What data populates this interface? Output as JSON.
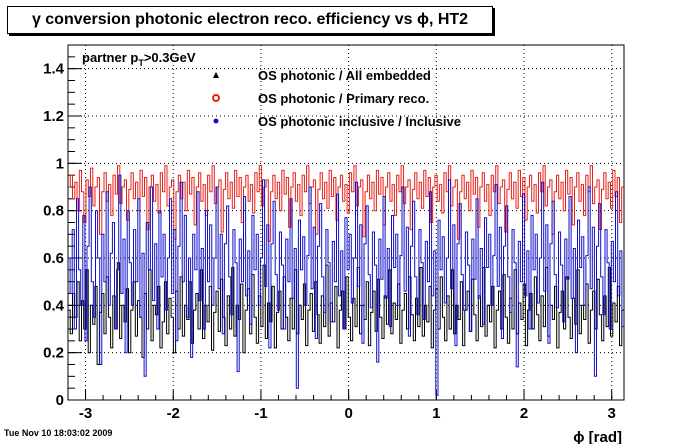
{
  "title": "γ conversion photonic electron reco. efficiency vs ϕ, HT2",
  "timestamp": "Tue Nov 10 18:03:02 2009",
  "chart_data": {
    "type": "line",
    "title": "γ conversion photonic electron reco. efficiency vs ϕ, HT2",
    "xlabel": "ϕ [rad]",
    "ylabel": "",
    "xlim": [
      -3.2,
      3.14
    ],
    "ylim": [
      0,
      1.5
    ],
    "xticks": [
      -3,
      -2,
      -1,
      0,
      1,
      2,
      3
    ],
    "xtick_labels": [
      "-3",
      "-2",
      "-1",
      "0",
      "1",
      "2",
      "3"
    ],
    "yticks": [
      0,
      0.2,
      0.4,
      0.6,
      0.8,
      1,
      1.2,
      1.4
    ],
    "ytick_labels": [
      "0",
      "0.2",
      "0.4",
      "0.6",
      "0.8",
      "1",
      "1.2",
      "1.4"
    ],
    "grid": true,
    "annotation": "partner p",
    "annotation_sub": "T",
    "annotation_suffix": ">0.3GeV",
    "legend_position": "top",
    "series": [
      {
        "name": "OS photonic / All embedded",
        "color": "#000000",
        "marker": "triangle",
        "values": [
          0.38,
          0.28,
          0.45,
          0.35,
          0.5,
          0.25,
          0.42,
          0.3,
          0.55,
          0.2,
          0.4,
          0.32,
          0.48,
          0.15,
          0.37,
          0.45,
          0.28,
          0.52,
          0.35,
          0.22,
          0.44,
          0.3,
          0.58,
          0.26,
          0.4,
          0.33,
          0.47,
          0.2,
          0.38,
          0.5,
          0.27,
          0.42,
          0.35,
          0.18,
          0.45,
          0.3,
          0.55,
          0.25,
          0.4,
          0.36,
          0.48,
          0.22,
          0.33,
          0.5,
          0.28,
          0.43,
          0.35,
          0.2,
          0.46,
          0.3,
          0.52,
          0.27,
          0.4,
          0.34,
          0.5,
          0.24,
          0.38,
          0.45,
          0.3,
          0.55,
          0.26,
          0.4,
          0.33,
          0.48,
          0.21,
          0.37,
          0.46,
          0.29,
          0.51,
          0.35,
          0.23,
          0.44,
          0.3,
          0.56,
          0.27,
          0.4,
          0.34,
          0.49,
          0.2,
          0.38,
          0.47,
          0.28,
          0.53,
          0.35,
          0.24,
          0.44,
          0.31,
          0.57,
          0.26,
          0.41,
          0.33,
          0.48,
          0.22,
          0.37,
          0.46,
          0.3,
          0.52,
          0.35,
          0.25,
          0.43,
          0.3,
          0.55,
          0.28,
          0.4,
          0.34,
          0.49,
          0.23,
          0.38,
          0.45,
          0.29,
          0.5,
          0.36,
          0.24,
          0.44,
          0.31,
          0.57,
          0.27,
          0.41,
          0.33,
          0.48,
          0.22,
          0.38,
          0.46,
          0.3,
          0.52,
          0.35,
          0.25,
          0.43,
          0.31,
          0.56,
          0.28,
          0.4,
          0.34,
          0.5,
          0.23,
          0.37,
          0.46,
          0.29,
          0.51,
          0.35,
          0.26,
          0.44,
          0.32,
          0.55,
          0.28,
          0.41,
          0.34,
          0.49,
          0.24,
          0.38,
          0.45,
          0.3,
          0.52,
          0.36,
          0.25,
          0.43,
          0.31,
          0.56,
          0.27,
          0.4,
          0.33,
          0.48,
          0.22,
          0.38,
          0.47,
          0.3,
          0.52,
          0.35,
          0.25,
          0.44,
          0.3,
          0.55,
          0.28,
          0.4,
          0.34,
          0.5,
          0.23,
          0.38,
          0.46,
          0.29,
          0.51,
          0.36,
          0.25,
          0.44,
          0.31,
          0.56,
          0.27,
          0.4,
          0.33,
          0.48,
          0.22,
          0.38,
          0.46,
          0.3,
          0.53,
          0.35,
          0.24,
          0.43,
          0.3,
          0.55,
          0.28,
          0.41,
          0.34,
          0.49,
          0.23,
          0.38,
          0.45,
          0.3,
          0.52,
          0.36,
          0.25,
          0.44,
          0.31,
          0.56,
          0.27,
          0.4,
          0.34,
          0.48,
          0.22,
          0.37,
          0.46,
          0.3,
          0.52,
          0.35,
          0.26,
          0.43,
          0.32,
          0.55,
          0.28,
          0.4,
          0.34,
          0.49,
          0.24,
          0.38,
          0.46,
          0.3,
          0.51,
          0.36,
          0.25,
          0.44,
          0.31,
          0.56,
          0.27,
          0.41,
          0.33,
          0.48,
          0.23,
          0.38
        ]
      },
      {
        "name": "OS photonic / Primary reco.",
        "color": "#e8201a",
        "marker": "circle",
        "values": [
          0.9,
          0.95,
          0.85,
          0.92,
          0.8,
          0.97,
          0.88,
          0.75,
          0.93,
          0.86,
          0.98,
          0.82,
          0.9,
          0.94,
          0.7,
          0.88,
          0.96,
          0.84,
          0.91,
          0.78,
          0.95,
          0.87,
          0.99,
          0.83,
          0.9,
          0.93,
          0.76,
          0.89,
          0.96,
          0.85,
          0.92,
          0.8,
          0.97,
          0.86,
          0.94,
          0.72,
          0.9,
          0.95,
          0.84,
          0.91,
          0.79,
          0.96,
          0.88,
          0.99,
          0.82,
          0.9,
          0.93,
          0.68,
          0.88,
          0.95,
          0.85,
          0.92,
          0.8,
          0.97,
          0.87,
          0.94,
          0.74,
          0.9,
          0.96,
          0.84,
          0.91,
          0.78,
          0.95,
          0.88,
          0.99,
          0.83,
          0.9,
          0.93,
          0.71,
          0.89,
          0.96,
          0.85,
          0.92,
          0.81,
          0.97,
          0.86,
          0.94,
          0.75,
          0.9,
          0.95,
          0.84,
          0.91,
          0.79,
          0.96,
          0.88,
          0.99,
          0.82,
          0.9,
          0.93,
          0.67,
          0.88,
          0.95,
          0.85,
          0.92,
          0.8,
          0.97,
          0.87,
          0.94,
          0.73,
          0.9,
          0.96,
          0.84,
          0.91,
          0.78,
          0.95,
          0.88,
          0.99,
          0.83,
          0.9,
          0.93,
          0.7,
          0.89,
          0.96,
          0.85,
          0.92,
          0.81,
          0.97,
          0.86,
          0.94,
          0.76,
          0.9,
          0.95,
          0.84,
          0.91,
          0.79,
          0.96,
          0.88,
          0.99,
          0.82,
          0.9,
          0.93,
          0.69,
          0.88,
          0.95,
          0.85,
          0.92,
          0.8,
          0.97,
          0.87,
          0.94,
          0.74,
          0.9,
          0.96,
          0.84,
          0.91,
          0.78,
          0.95,
          0.88,
          0.99,
          0.83,
          0.9,
          0.93,
          0.72,
          0.89,
          0.96,
          0.85,
          0.92,
          0.81,
          0.97,
          0.86,
          0.94,
          0.75,
          0.9,
          0.95,
          0.84,
          0.91,
          0.79,
          0.96,
          0.88,
          0.99,
          0.82,
          0.9,
          0.93,
          0.68,
          0.88,
          0.95,
          0.85,
          0.92,
          0.8,
          0.97,
          0.87,
          0.94,
          0.73,
          0.9,
          0.96,
          0.84,
          0.91,
          0.78,
          0.95,
          0.88,
          0.99,
          0.83,
          0.9,
          0.93,
          0.71,
          0.89,
          0.96,
          0.85,
          0.92,
          0.81,
          0.97,
          0.86,
          0.94,
          0.76,
          0.9,
          0.95,
          0.84,
          0.91,
          0.79,
          0.96,
          0.88,
          0.99,
          0.82,
          0.9,
          0.93,
          0.7,
          0.88,
          0.95,
          0.85,
          0.92,
          0.8,
          0.97,
          0.87,
          0.94,
          0.74,
          0.9,
          0.96,
          0.84,
          0.91,
          0.78,
          0.95,
          0.88,
          0.99,
          0.83,
          0.9,
          0.93,
          0.72,
          0.89,
          0.96,
          0.85,
          0.92,
          0.81,
          0.97,
          0.86,
          0.94,
          0.75,
          0.9
        ]
      },
      {
        "name": "OS photonic inclusive / Inclusive",
        "color": "#1010cc",
        "marker": "dot",
        "values": [
          0.6,
          0.45,
          0.72,
          0.3,
          0.85,
          0.55,
          0.4,
          0.78,
          0.25,
          0.65,
          0.9,
          0.5,
          0.35,
          0.8,
          0.6,
          0.15,
          0.7,
          0.5,
          0.88,
          0.4,
          0.62,
          0.75,
          0.3,
          0.55,
          0.95,
          0.45,
          0.68,
          0.2,
          0.8,
          0.58,
          0.4,
          0.72,
          0.5,
          0.85,
          0.35,
          0.62,
          0.1,
          0.75,
          0.55,
          0.9,
          0.42,
          0.66,
          0.3,
          0.8,
          0.52,
          0.7,
          0.38,
          0.6,
          0.85,
          0.45,
          0.72,
          0.25,
          0.65,
          0.92,
          0.5,
          0.78,
          0.35,
          0.6,
          0.18,
          0.7,
          0.55,
          0.88,
          0.42,
          0.64,
          0.3,
          0.8,
          0.5,
          0.74,
          0.4,
          0.6,
          0.9,
          0.47,
          0.7,
          0.28,
          0.66,
          0.82,
          0.52,
          0.36,
          0.72,
          0.58,
          0.12,
          0.68,
          0.5,
          0.86,
          0.44,
          0.63,
          0.32,
          0.78,
          0.55,
          0.7,
          0.4,
          0.6,
          0.93,
          0.48,
          0.74,
          0.22,
          0.66,
          0.84,
          0.53,
          0.38,
          0.71,
          0.57,
          0.3,
          0.68,
          0.5,
          0.85,
          0.43,
          0.64,
          0.05,
          0.76,
          0.55,
          0.69,
          0.4,
          0.61,
          0.9,
          0.47,
          0.73,
          0.26,
          0.65,
          0.83,
          0.52,
          0.37,
          0.72,
          0.58,
          0.33,
          0.67,
          0.5,
          0.87,
          0.44,
          0.63,
          0.3,
          0.77,
          0.55,
          0.7,
          0.41,
          0.6,
          0.92,
          0.48,
          0.74,
          0.24,
          0.66,
          0.82,
          0.53,
          0.39,
          0.71,
          0.57,
          0.16,
          0.68,
          0.51,
          0.86,
          0.43,
          0.64,
          0.31,
          0.78,
          0.56,
          0.7,
          0.4,
          0.61,
          0.9,
          0.46,
          0.73,
          0.27,
          0.65,
          0.84,
          0.52,
          0.36,
          0.72,
          0.58,
          0.34,
          0.67,
          0.5,
          0.88,
          0.44,
          0.63,
          0.02,
          0.76,
          0.55,
          0.69,
          0.41,
          0.6,
          0.93,
          0.47,
          0.74,
          0.23,
          0.66,
          0.83,
          0.53,
          0.38,
          0.71,
          0.57,
          0.29,
          0.68,
          0.51,
          0.85,
          0.43,
          0.64,
          0.32,
          0.77,
          0.56,
          0.7,
          0.4,
          0.61,
          0.91,
          0.48,
          0.73,
          0.26,
          0.65,
          0.82,
          0.52,
          0.37,
          0.72,
          0.58,
          0.14,
          0.67,
          0.5,
          0.87,
          0.44,
          0.63,
          0.3,
          0.78,
          0.55,
          0.7,
          0.41,
          0.6,
          0.92,
          0.46,
          0.74,
          0.24,
          0.66,
          0.84,
          0.53,
          0.39,
          0.71,
          0.57,
          0.33,
          0.68,
          0.51,
          0.86,
          0.43,
          0.64,
          0.2,
          0.76,
          0.56,
          0.69,
          0.4,
          0.61,
          0.9,
          0.47,
          0.73,
          0.1,
          0.65,
          0.83,
          0.52,
          0.36,
          0.72,
          0.58,
          0.3,
          0.67,
          0.5,
          0.88,
          0.44,
          0.63,
          0.31
        ]
      }
    ]
  }
}
